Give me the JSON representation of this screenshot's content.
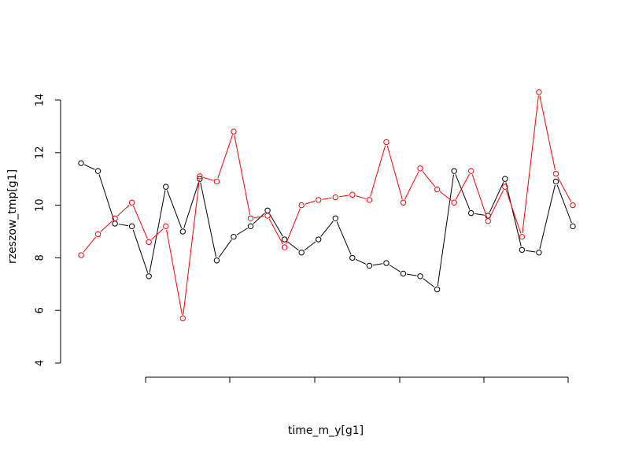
{
  "chart_data": {
    "type": "line",
    "xlabel": "time_m_y[g1]",
    "ylabel": "rzeszow_tmp[g1]",
    "ylim": [
      4,
      14
    ],
    "yticks": [
      4,
      6,
      8,
      10,
      12,
      14
    ],
    "grid": false,
    "legend": "none",
    "x": [
      1,
      2,
      3,
      4,
      5,
      6,
      7,
      8,
      9,
      10,
      11,
      12,
      13,
      14,
      15,
      16,
      17,
      18,
      19,
      20,
      21,
      22,
      23,
      24,
      25,
      26,
      27,
      28,
      29,
      30
    ],
    "series": [
      {
        "color": "#000000",
        "values": [
          11.6,
          11.3,
          9.3,
          9.2,
          7.3,
          10.7,
          9.0,
          11.0,
          7.9,
          8.8,
          9.2,
          9.8,
          8.7,
          8.2,
          8.7,
          9.5,
          8.0,
          7.7,
          7.8,
          7.4,
          7.3,
          6.8,
          11.3,
          9.7,
          9.6,
          11.0,
          8.3,
          8.2,
          10.9,
          9.2
        ]
      },
      {
        "color": "#ff0000",
        "values": [
          8.1,
          8.9,
          9.5,
          10.1,
          8.6,
          9.2,
          5.7,
          11.1,
          10.9,
          12.8,
          9.5,
          9.6,
          8.4,
          10.0,
          10.2,
          10.3,
          10.4,
          10.2,
          12.4,
          10.1,
          11.4,
          10.6,
          10.1,
          11.3,
          9.4,
          10.7,
          8.8,
          14.3,
          11.2,
          10.0
        ]
      }
    ]
  }
}
